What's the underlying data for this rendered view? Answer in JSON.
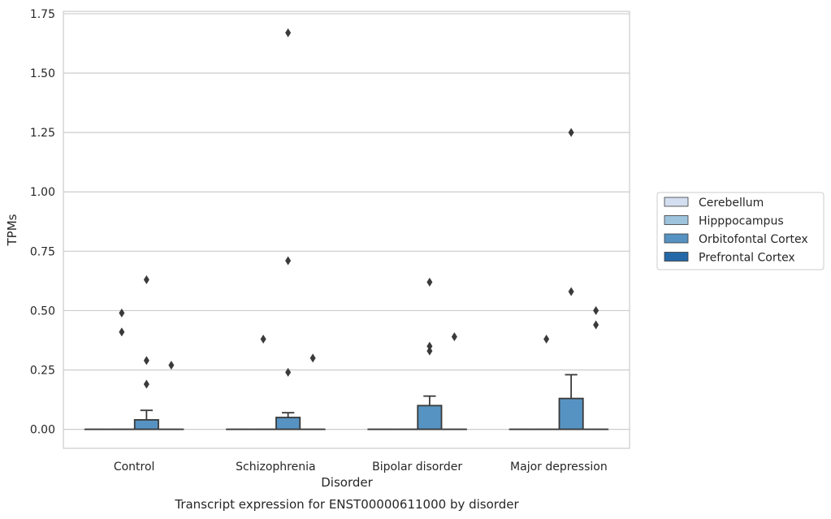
{
  "chart_data": {
    "type": "box",
    "title": "Transcript expression for ENST00000611000 by disorder",
    "xlabel": "Disorder",
    "ylabel": "TPMs",
    "ylim": [
      -0.08,
      1.76
    ],
    "yticks": [
      "0.00",
      "0.25",
      "0.50",
      "0.75",
      "1.00",
      "1.25",
      "1.50",
      "1.75"
    ],
    "ytick_values": [
      0,
      0.25,
      0.5,
      0.75,
      1.0,
      1.25,
      1.5,
      1.75
    ],
    "grid": true,
    "legend_position": "right",
    "categories": [
      "Control",
      "Schizophrenia",
      "Bipolar disorder",
      "Major depression"
    ],
    "series": [
      {
        "name": "Cerebellum",
        "color": "#d3dff0",
        "boxes": [
          {
            "q1": 0,
            "median": 0,
            "q3": 0,
            "whisker_low": 0,
            "whisker_high": 0,
            "outliers": []
          },
          {
            "q1": 0,
            "median": 0,
            "q3": 0,
            "whisker_low": 0,
            "whisker_high": 0,
            "outliers": []
          },
          {
            "q1": 0,
            "median": 0,
            "q3": 0,
            "whisker_low": 0,
            "whisker_high": 0,
            "outliers": []
          },
          {
            "q1": 0,
            "median": 0,
            "q3": 0,
            "whisker_low": 0,
            "whisker_high": 0,
            "outliers": []
          }
        ]
      },
      {
        "name": "Hipppocampus",
        "color": "#9ec3dd",
        "boxes": [
          {
            "q1": 0,
            "median": 0,
            "q3": 0,
            "whisker_low": 0,
            "whisker_high": 0,
            "outliers": [
              0.49,
              0.41
            ]
          },
          {
            "q1": 0,
            "median": 0,
            "q3": 0,
            "whisker_low": 0,
            "whisker_high": 0,
            "outliers": [
              0.38
            ]
          },
          {
            "q1": 0,
            "median": 0,
            "q3": 0,
            "whisker_low": 0,
            "whisker_high": 0,
            "outliers": []
          },
          {
            "q1": 0,
            "median": 0,
            "q3": 0,
            "whisker_low": 0,
            "whisker_high": 0,
            "outliers": [
              0.38
            ]
          }
        ]
      },
      {
        "name": "Orbitofontal Cortex",
        "color": "#5693c2",
        "boxes": [
          {
            "q1": 0,
            "median": 0,
            "q3": 0.04,
            "whisker_low": 0,
            "whisker_high": 0.08,
            "outliers": [
              0.63,
              0.29,
              0.19
            ]
          },
          {
            "q1": 0,
            "median": 0,
            "q3": 0.05,
            "whisker_low": 0,
            "whisker_high": 0.07,
            "outliers": [
              1.67,
              0.71,
              0.24
            ]
          },
          {
            "q1": 0,
            "median": 0,
            "q3": 0.1,
            "whisker_low": 0,
            "whisker_high": 0.14,
            "outliers": [
              0.62,
              0.35,
              0.33
            ]
          },
          {
            "q1": 0,
            "median": 0,
            "q3": 0.13,
            "whisker_low": 0,
            "whisker_high": 0.23,
            "outliers": [
              1.25,
              0.58
            ]
          }
        ]
      },
      {
        "name": "Prefrontal Cortex",
        "color": "#2568a7",
        "boxes": [
          {
            "q1": 0,
            "median": 0,
            "q3": 0,
            "whisker_low": 0,
            "whisker_high": 0,
            "outliers": [
              0.27
            ]
          },
          {
            "q1": 0,
            "median": 0,
            "q3": 0,
            "whisker_low": 0,
            "whisker_high": 0,
            "outliers": [
              0.3
            ]
          },
          {
            "q1": 0,
            "median": 0,
            "q3": 0,
            "whisker_low": 0,
            "whisker_high": 0,
            "outliers": [
              0.39
            ]
          },
          {
            "q1": 0,
            "median": 0,
            "q3": 0,
            "whisker_low": 0,
            "whisker_high": 0,
            "outliers": [
              0.5,
              0.44
            ]
          }
        ]
      }
    ]
  }
}
